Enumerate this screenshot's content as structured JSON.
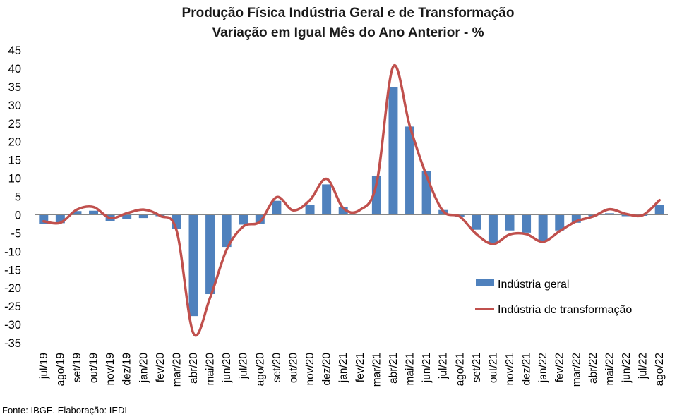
{
  "chart_data": {
    "type": "bar",
    "title": "Produção Física Indústria Geral e de Transformação",
    "subtitle": "Variação em Igual Mês do Ano Anterior - %",
    "categories": [
      "jul/19",
      "ago/19",
      "set/19",
      "out/19",
      "nov/19",
      "dez/19",
      "jan/20",
      "fev/20",
      "mar/20",
      "abr/20",
      "mai/20",
      "jun/20",
      "jul/20",
      "ago/20",
      "set/20",
      "out/20",
      "nov/20",
      "dez/20",
      "jan/21",
      "fev/21",
      "mar/21",
      "abr/21",
      "mai/21",
      "jun/21",
      "jul/21",
      "ago/21",
      "set/21",
      "out/21",
      "nov/21",
      "dez/21",
      "jan/22",
      "fev/22",
      "mar/22",
      "abr/22",
      "mai/22",
      "jun/22",
      "jul/22",
      "ago/22"
    ],
    "series": [
      {
        "name": "Indústria geral",
        "type": "bar",
        "color": "#4f81bd",
        "values": [
          -2.5,
          -2.3,
          1.0,
          1.1,
          -1.7,
          -1.2,
          -0.9,
          -0.4,
          -3.9,
          -27.7,
          -21.7,
          -8.8,
          -2.7,
          -2.6,
          3.8,
          0.2,
          2.6,
          8.3,
          2.2,
          0.2,
          10.5,
          34.8,
          24.1,
          12.0,
          1.3,
          -0.6,
          -4.1,
          -7.7,
          -4.3,
          -4.9,
          -7.2,
          -4.3,
          -2.2,
          -0.4,
          0.4,
          -0.4,
          -0.3,
          2.7
        ]
      },
      {
        "name": "Indústria de transformação",
        "type": "line",
        "color": "#c0504d",
        "values": [
          -1.8,
          -2.2,
          1.4,
          2.1,
          -0.9,
          0.4,
          1.4,
          -0.3,
          -4.5,
          -32.4,
          -22.7,
          -9.5,
          -3.2,
          -1.9,
          4.8,
          1.2,
          4.0,
          9.8,
          1.8,
          1.3,
          8.5,
          40.5,
          24.2,
          10.7,
          1.0,
          -0.5,
          -5.3,
          -8.0,
          -5.4,
          -5.3,
          -7.4,
          -4.5,
          -1.8,
          -0.5,
          1.5,
          0.2,
          -0.1,
          4.0
        ]
      }
    ],
    "ylim": [
      -35,
      45
    ],
    "yticks": [
      "45",
      "40",
      "35",
      "30",
      "25",
      "20",
      "15",
      "10",
      "5",
      "0",
      "-5",
      "-10",
      "-15",
      "-20",
      "-25",
      "-30",
      "-35"
    ],
    "grid": false,
    "legend_position": "right"
  },
  "source": "Fonte: IBGE. Elaboração: IEDI"
}
